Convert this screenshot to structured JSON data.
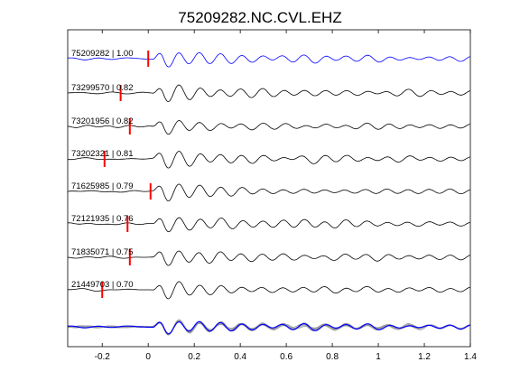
{
  "chart_data": {
    "type": "line",
    "title": "75209282.NC.CVL.EHZ",
    "xlabel": "",
    "ylabel": "",
    "xlim": [
      -0.35,
      1.4
    ],
    "xticks": [
      -0.2,
      0,
      0.2,
      0.4,
      0.6,
      0.8,
      1,
      1.2,
      1.4
    ],
    "xtick_labels": [
      "-0.2",
      "0",
      "0.2",
      "0.4",
      "0.6",
      "0.8",
      "1",
      "1.2",
      "1.4"
    ],
    "grid": false,
    "legend": "none",
    "traces": [
      {
        "event_id": "75209282",
        "correlation": "1.00",
        "label": "75209282 | 1.00",
        "pick_time": 0.0,
        "color": "#0000ff",
        "seed": 1
      },
      {
        "event_id": "73299570",
        "correlation": "0.82",
        "label": "73299570 | 0.82",
        "pick_time": -0.12,
        "color": "#000000",
        "seed": 2
      },
      {
        "event_id": "73201956",
        "correlation": "0.82",
        "label": "73201956 | 0.82",
        "pick_time": -0.08,
        "color": "#000000",
        "seed": 3
      },
      {
        "event_id": "73202321",
        "correlation": "0.81",
        "label": "73202321 | 0.81",
        "pick_time": -0.19,
        "color": "#000000",
        "seed": 4
      },
      {
        "event_id": "71625985",
        "correlation": "0.79",
        "label": "71625985 | 0.79",
        "pick_time": 0.01,
        "color": "#000000",
        "seed": 5
      },
      {
        "event_id": "72121935",
        "correlation": "0.76",
        "label": "72121935 | 0.76",
        "pick_time": -0.09,
        "color": "#000000",
        "seed": 6
      },
      {
        "event_id": "71835071",
        "correlation": "0.75",
        "label": "71835071 | 0.75",
        "pick_time": -0.08,
        "color": "#000000",
        "seed": 7
      },
      {
        "event_id": "21449703",
        "correlation": "0.70",
        "label": "21449703 | 0.70",
        "pick_time": -0.2,
        "color": "#000000",
        "seed": 8
      }
    ],
    "stack": {
      "reference_color": "#0000ff",
      "overlay_color": "#9a9a9a"
    },
    "pick_marker_color": "#ff0000",
    "axis_color": "#000000"
  }
}
